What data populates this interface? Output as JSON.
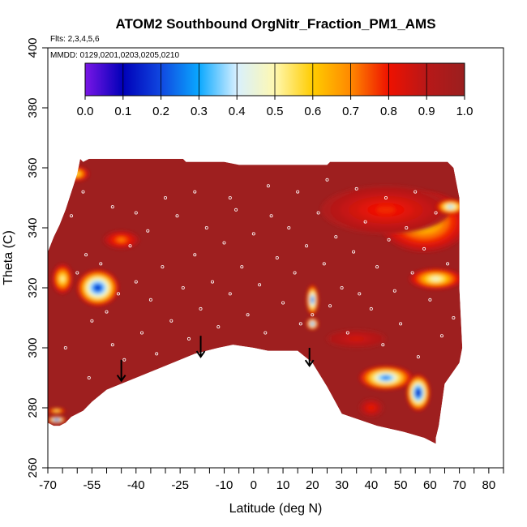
{
  "chart_data": {
    "type": "heatmap",
    "title": "ATOM2 Southbound OrgNitr_Fraction_PM1_AMS",
    "subtitle_flights": "Flts: 2,3,4,5,6",
    "subtitle_dates": "MMDD: 0129,0201,0203,0205,0210",
    "xlabel": "Latitude (deg N)",
    "ylabel": "Theta (C)",
    "xlim": [
      -70,
      85
    ],
    "ylim": [
      260,
      400
    ],
    "x_ticks": [
      -70,
      -55,
      -40,
      -25,
      -10,
      0,
      10,
      20,
      30,
      40,
      50,
      60,
      70,
      80
    ],
    "x_minor_ticks": [
      -65,
      -60,
      -50,
      -45,
      -35,
      -30,
      -20,
      -15,
      -5,
      5,
      15,
      25,
      35,
      45,
      55,
      65,
      75,
      85
    ],
    "y_ticks": [
      260,
      280,
      300,
      320,
      340,
      360,
      380,
      400
    ],
    "colorbar": {
      "min": 0.0,
      "max": 1.0,
      "tick_labels": [
        "0.0",
        "0.1",
        "0.2",
        "0.3",
        "0.4",
        "0.5",
        "0.6",
        "0.7",
        "0.8",
        "0.9",
        "1.0"
      ],
      "colors": [
        "#7a16e6",
        "#0000b8",
        "#1048e0",
        "#0aa8ff",
        "#d8f0ff",
        "#fff8b0",
        "#ffcc00",
        "#ff8800",
        "#ee1100",
        "#b81818",
        "#9a1f1f"
      ]
    },
    "background_value": 0.95,
    "background_color": "#9e1f1f",
    "data_envelope": [
      [
        -70,
        332
      ],
      [
        -68,
        337
      ],
      [
        -66,
        341
      ],
      [
        -64,
        346
      ],
      [
        -62,
        352
      ],
      [
        -60,
        358
      ],
      [
        -59,
        363
      ],
      [
        -58,
        362
      ],
      [
        -56,
        363
      ],
      [
        -40,
        363
      ],
      [
        -24,
        363
      ],
      [
        -23,
        362
      ],
      [
        -10,
        362
      ],
      [
        -5,
        361
      ],
      [
        8,
        361
      ],
      [
        25,
        361
      ],
      [
        26,
        362
      ],
      [
        40,
        362
      ],
      [
        60,
        362
      ],
      [
        66,
        362
      ],
      [
        68,
        360
      ],
      [
        70,
        350
      ],
      [
        70,
        320
      ],
      [
        71,
        300
      ],
      [
        70,
        295
      ],
      [
        65,
        288
      ],
      [
        63,
        274
      ],
      [
        62,
        270
      ],
      [
        62,
        268
      ],
      [
        58,
        270
      ],
      [
        51,
        272
      ],
      [
        42,
        274
      ],
      [
        30,
        278
      ],
      [
        25,
        287
      ],
      [
        20,
        295
      ],
      [
        15,
        299
      ],
      [
        5,
        299
      ],
      [
        0,
        300
      ],
      [
        -7,
        301
      ],
      [
        -12,
        300
      ],
      [
        -20,
        298
      ],
      [
        -30,
        294
      ],
      [
        -40,
        290
      ],
      [
        -45,
        288
      ],
      [
        -50,
        286
      ],
      [
        -55,
        282
      ],
      [
        -58,
        279
      ],
      [
        -62,
        277
      ],
      [
        -64,
        275
      ],
      [
        -66,
        274
      ],
      [
        -68,
        274
      ],
      [
        -70,
        275
      ]
    ],
    "features": [
      {
        "x": -53,
        "y": 320,
        "rx": 7,
        "ry": 6,
        "value": 0.15
      },
      {
        "x": -65,
        "y": 323,
        "rx": 3.5,
        "ry": 5,
        "value": 0.5
      },
      {
        "x": -60,
        "y": 358,
        "rx": 4,
        "ry": 2.5,
        "value": 0.55
      },
      {
        "x": -45,
        "y": 336,
        "rx": 6,
        "ry": 3,
        "value": 0.7
      },
      {
        "x": 20,
        "y": 316,
        "rx": 2,
        "ry": 5,
        "value": 0.2
      },
      {
        "x": 20,
        "y": 308,
        "rx": 2,
        "ry": 2,
        "value": 0.2
      },
      {
        "x": 58,
        "y": 342,
        "rx": 15,
        "ry": 10,
        "value": 0.55
      },
      {
        "x": 45,
        "y": 346,
        "rx": 22,
        "ry": 8,
        "value": 0.78
      },
      {
        "x": 67,
        "y": 347,
        "rx": 5,
        "ry": 2.5,
        "value": 0.35
      },
      {
        "x": 62,
        "y": 323,
        "rx": 9,
        "ry": 3.5,
        "value": 0.45
      },
      {
        "x": 45,
        "y": 290,
        "rx": 9,
        "ry": 4,
        "value": 0.25
      },
      {
        "x": 56,
        "y": 285,
        "rx": 4,
        "ry": 6,
        "value": 0.1
      },
      {
        "x": -67,
        "y": 276,
        "rx": 3,
        "ry": 1.2,
        "value": 0.1
      },
      {
        "x": -67,
        "y": 279,
        "rx": 3,
        "ry": 1,
        "value": 0.5
      },
      {
        "x": 40,
        "y": 280,
        "rx": 4,
        "ry": 3,
        "value": 0.8
      },
      {
        "x": 35,
        "y": 303,
        "rx": 10,
        "ry": 3,
        "value": 0.85
      }
    ],
    "arrows": [
      {
        "x": -45,
        "y_top": 296,
        "y_bottom": 289
      },
      {
        "x": -18,
        "y_top": 304,
        "y_bottom": 297
      },
      {
        "x": 19,
        "y_top": 300,
        "y_bottom": 294
      }
    ],
    "sample_points": [
      [
        -60,
        325
      ],
      [
        -57,
        331
      ],
      [
        -55,
        309
      ],
      [
        -52,
        328
      ],
      [
        -50,
        312
      ],
      [
        -48,
        301
      ],
      [
        -46,
        318
      ],
      [
        -45,
        287
      ],
      [
        -44,
        296
      ],
      [
        -42,
        334
      ],
      [
        -40,
        322
      ],
      [
        -38,
        305
      ],
      [
        -36,
        339
      ],
      [
        -35,
        316
      ],
      [
        -33,
        298
      ],
      [
        -31,
        327
      ],
      [
        -28,
        309
      ],
      [
        -26,
        344
      ],
      [
        -24,
        320
      ],
      [
        -22,
        303
      ],
      [
        -20,
        331
      ],
      [
        -18,
        313
      ],
      [
        -16,
        340
      ],
      [
        -14,
        322
      ],
      [
        -12,
        307
      ],
      [
        -10,
        335
      ],
      [
        -8,
        318
      ],
      [
        -6,
        346
      ],
      [
        -4,
        327
      ],
      [
        -2,
        311
      ],
      [
        0,
        338
      ],
      [
        2,
        321
      ],
      [
        4,
        305
      ],
      [
        6,
        344
      ],
      [
        8,
        330
      ],
      [
        10,
        315
      ],
      [
        12,
        340
      ],
      [
        14,
        325
      ],
      [
        16,
        308
      ],
      [
        18,
        334
      ],
      [
        20,
        311
      ],
      [
        22,
        345
      ],
      [
        24,
        328
      ],
      [
        26,
        314
      ],
      [
        28,
        337
      ],
      [
        30,
        320
      ],
      [
        32,
        305
      ],
      [
        34,
        332
      ],
      [
        36,
        318
      ],
      [
        38,
        342
      ],
      [
        40,
        313
      ],
      [
        42,
        327
      ],
      [
        44,
        301
      ],
      [
        46,
        336
      ],
      [
        48,
        319
      ],
      [
        50,
        308
      ],
      [
        52,
        340
      ],
      [
        54,
        325
      ],
      [
        56,
        297
      ],
      [
        58,
        333
      ],
      [
        60,
        316
      ],
      [
        62,
        345
      ],
      [
        64,
        304
      ],
      [
        66,
        328
      ],
      [
        68,
        310
      ],
      [
        -62,
        344
      ],
      [
        -58,
        352
      ],
      [
        -48,
        347
      ],
      [
        -30,
        350
      ],
      [
        -8,
        350
      ],
      [
        15,
        352
      ],
      [
        35,
        353
      ],
      [
        55,
        352
      ],
      [
        -64,
        300
      ],
      [
        -56,
        290
      ],
      [
        -40,
        345
      ],
      [
        -20,
        352
      ],
      [
        5,
        354
      ],
      [
        25,
        356
      ],
      [
        45,
        350
      ]
    ]
  }
}
